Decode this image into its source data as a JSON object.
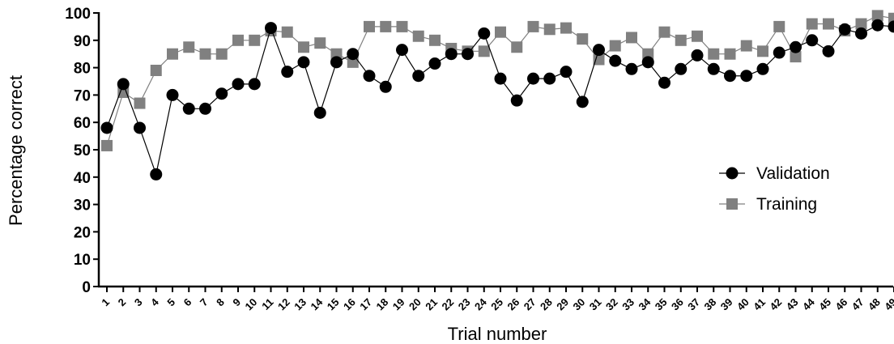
{
  "chart_data": {
    "type": "line",
    "xlabel": "Trial number",
    "ylabel": "Percentage correct",
    "ylim": [
      0,
      100
    ],
    "yticks": [
      0,
      10,
      20,
      30,
      40,
      50,
      60,
      70,
      80,
      90,
      100
    ],
    "categories": [
      "1",
      "2",
      "3",
      "4",
      "5",
      "6",
      "7",
      "8",
      "9",
      "10",
      "11",
      "12",
      "13",
      "14",
      "15",
      "16",
      "17",
      "18",
      "19",
      "20",
      "21",
      "22",
      "23",
      "24",
      "25",
      "26",
      "27",
      "28",
      "29",
      "30",
      "31",
      "32",
      "33",
      "34",
      "35",
      "36",
      "37",
      "38",
      "39",
      "40",
      "41",
      "42",
      "43",
      "44",
      "45",
      "46",
      "47",
      "48",
      "49"
    ],
    "legend_position": "right",
    "grid": false,
    "series": [
      {
        "name": "Validation",
        "marker": "circle",
        "color": "#000000",
        "values": [
          58,
          74,
          58,
          41,
          70,
          65,
          65,
          70.5,
          74,
          74,
          94.5,
          78.5,
          82,
          63.5,
          82,
          85,
          77,
          73,
          86.5,
          77,
          81.5,
          85,
          85,
          92.5,
          76,
          68,
          76,
          76,
          78.5,
          67.5,
          86.5,
          82.5,
          79.5,
          82,
          74.5,
          79.5,
          84.5,
          79.5,
          77,
          77,
          79.5,
          85.5,
          87.5,
          90,
          86,
          94,
          92.5,
          95.5,
          95
        ]
      },
      {
        "name": "Training",
        "marker": "square",
        "color": "#808080",
        "values": [
          51.5,
          71,
          67,
          79,
          85,
          87.5,
          85,
          85,
          90,
          90,
          93.5,
          93,
          87.5,
          89,
          85,
          82,
          95,
          95,
          95,
          91.5,
          90,
          87,
          86,
          86,
          93,
          87.5,
          95,
          94,
          94.5,
          90.5,
          83,
          88,
          91,
          85,
          93,
          90,
          91.5,
          85,
          85,
          88,
          86,
          95,
          84,
          96,
          96,
          93.5,
          96,
          99,
          98
        ]
      }
    ]
  }
}
